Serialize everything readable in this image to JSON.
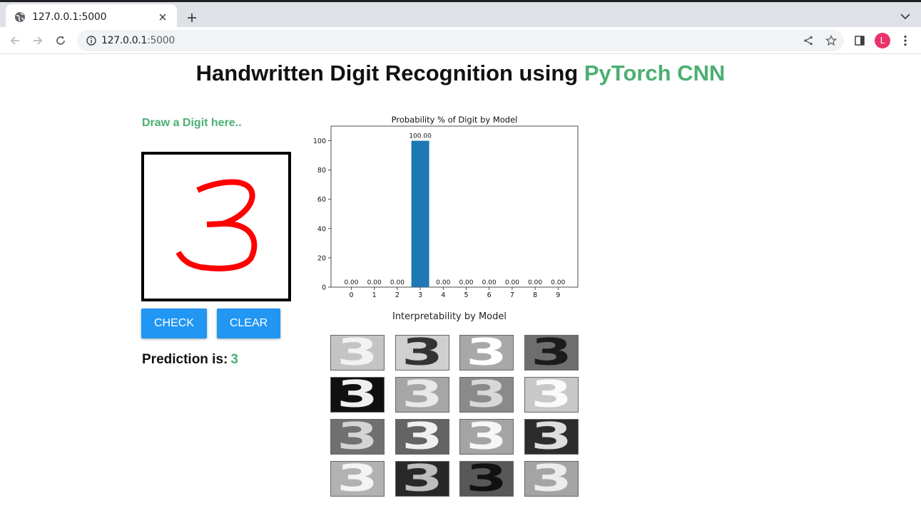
{
  "browser": {
    "tab_title": "127.0.0.1:5000",
    "url_host": "127.0.0.1",
    "url_port": ":5000",
    "profile_initial": "L",
    "icons": [
      "globe-icon",
      "close-icon",
      "plus-icon",
      "chevron-down-icon",
      "back-arrow-icon",
      "forward-arrow-icon",
      "reload-icon",
      "info-icon",
      "share-icon",
      "star-icon",
      "side-panel-icon",
      "kebab-menu-icon"
    ]
  },
  "page": {
    "heading_main": "Handwritten Digit Recognition using ",
    "heading_accent": "PyTorch CNN",
    "draw_label": "Draw a Digit here..",
    "check_label": "CHECK",
    "clear_label": "CLEAR",
    "prediction_label": "Prediction is:",
    "prediction_value": "3",
    "interpretability_title": "Interpretability by Model",
    "accent_color": "#4caf72",
    "button_color": "#2196f3",
    "stroke_color": "#ff0000"
  },
  "chart_data": {
    "type": "bar",
    "title": "Probability % of Digit by Model",
    "categories": [
      "0",
      "1",
      "2",
      "3",
      "4",
      "5",
      "6",
      "7",
      "8",
      "9"
    ],
    "values": [
      0,
      0,
      0,
      100,
      0,
      0,
      0,
      0,
      0,
      0
    ],
    "data_labels": [
      "0.00",
      "0.00",
      "0.00",
      "100.00",
      "0.00",
      "0.00",
      "0.00",
      "0.00",
      "0.00",
      "0.00"
    ],
    "yticks": [
      0,
      20,
      40,
      60,
      80,
      100
    ],
    "ylim": [
      0,
      110
    ],
    "bar_color": "#1f77b4",
    "grid": false,
    "xlabel": "",
    "ylabel": ""
  },
  "feature_maps": {
    "glyph": "3",
    "tiles": [
      {
        "bg": "#c4c4c4",
        "fg": "#f2f2f2"
      },
      {
        "bg": "#d0d0d0",
        "fg": "#333333"
      },
      {
        "bg": "#a8a8a8",
        "fg": "#ffffff"
      },
      {
        "bg": "#6e6e6e",
        "fg": "#1c1c1c"
      },
      {
        "bg": "#101010",
        "fg": "#eeeeee"
      },
      {
        "bg": "#a6a6a6",
        "fg": "#e8e8e8"
      },
      {
        "bg": "#8a8a8a",
        "fg": "#d8d8d8"
      },
      {
        "bg": "#c8c8c8",
        "fg": "#fafafa"
      },
      {
        "bg": "#707070",
        "fg": "#d4d4d4"
      },
      {
        "bg": "#646464",
        "fg": "#f0f0f0"
      },
      {
        "bg": "#a4a4a4",
        "fg": "#f6f6f6"
      },
      {
        "bg": "#2c2c2c",
        "fg": "#dddddd"
      },
      {
        "bg": "#b2b2b2",
        "fg": "#f4f4f4"
      },
      {
        "bg": "#282828",
        "fg": "#bdbdbd"
      },
      {
        "bg": "#585858",
        "fg": "#111111"
      },
      {
        "bg": "#a4a4a4",
        "fg": "#ececec"
      }
    ]
  }
}
